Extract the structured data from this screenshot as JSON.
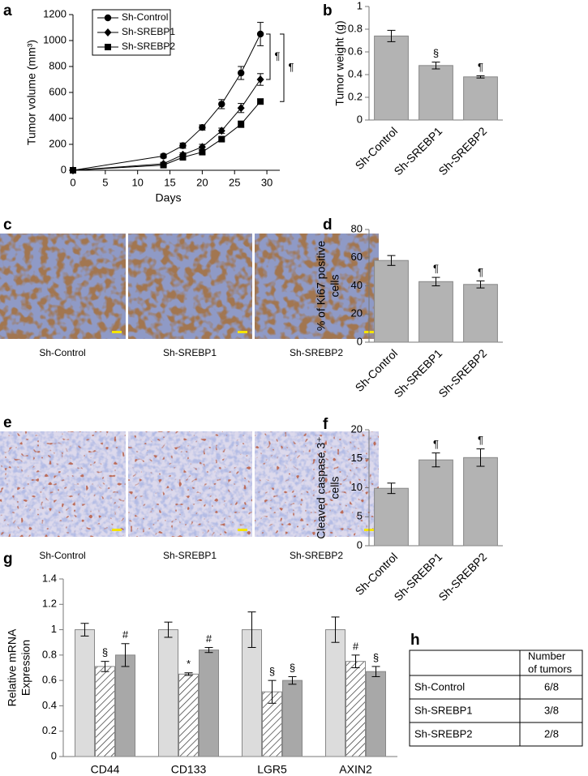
{
  "panel_labels": [
    "a",
    "b",
    "c",
    "d",
    "e",
    "f",
    "g",
    "h"
  ],
  "chart_data": [
    {
      "type": "line",
      "xlabel": "Days",
      "ylabel": [
        "Tumor volume (mm³)"
      ],
      "x": [
        0,
        14,
        17,
        20,
        23,
        26,
        29
      ],
      "xlim": [
        0,
        32
      ],
      "xticks": [
        0,
        5,
        10,
        15,
        20,
        25,
        30
      ],
      "ylim": [
        0,
        1200
      ],
      "yticks": [
        0,
        200,
        400,
        600,
        800,
        1000,
        1200
      ],
      "series": [
        {
          "name": "Sh-Control",
          "color": "#000000",
          "marker": "circle",
          "values": [
            0,
            110,
            190,
            330,
            510,
            750,
            1050
          ],
          "errors": [
            0,
            15,
            20,
            20,
            35,
            50,
            90
          ]
        },
        {
          "name": "Sh-SREBP1",
          "color": "#000000",
          "marker": "diamond",
          "values": [
            0,
            50,
            120,
            180,
            305,
            480,
            700
          ],
          "errors": [
            0,
            10,
            15,
            20,
            20,
            35,
            45
          ]
        },
        {
          "name": "Sh-SREBP2",
          "color": "#000000",
          "marker": "square",
          "values": [
            0,
            40,
            100,
            140,
            240,
            355,
            530
          ],
          "errors": [
            0,
            8,
            10,
            15,
            15,
            25,
            20
          ]
        }
      ],
      "annotations": [
        "¶",
        "¶"
      ]
    },
    {
      "type": "bar",
      "ylabel": [
        "Tumor weight (g)"
      ],
      "categories": [
        "Sh-Control",
        "Sh-SREBP1",
        "Sh-SREBP2"
      ],
      "values": [
        0.74,
        0.48,
        0.38
      ],
      "errors": [
        0.05,
        0.03,
        0.01
      ],
      "color": "#b3b3b3",
      "ylim": [
        0,
        1
      ],
      "yticks": [
        0,
        0.2,
        0.4,
        0.6,
        0.8,
        1
      ],
      "annotations": [
        {
          "index": 1,
          "text": "§"
        },
        {
          "index": 2,
          "text": "¶"
        }
      ]
    },
    {
      "type": "bar",
      "ylabel": [
        "% of Ki67 positive",
        "cells"
      ],
      "categories": [
        "Sh-Control",
        "Sh-SREBP1",
        "Sh-SREBP2"
      ],
      "values": [
        58,
        43,
        41
      ],
      "errors": [
        3.5,
        3,
        2.5
      ],
      "color": "#b3b3b3",
      "ylim": [
        0,
        80
      ],
      "yticks": [
        0,
        20,
        40,
        60,
        80
      ],
      "annotations": [
        {
          "index": 1,
          "text": "¶"
        },
        {
          "index": 2,
          "text": "¶"
        }
      ]
    },
    {
      "type": "bar",
      "ylabel": [
        "Cleaved caspase 3⁺",
        "cells"
      ],
      "categories": [
        "Sh-Control",
        "Sh-SREBP1",
        "Sh-SREBP2"
      ],
      "values": [
        9.9,
        14.8,
        15.2
      ],
      "errors": [
        0.9,
        1.2,
        1.5
      ],
      "color": "#b3b3b3",
      "ylim": [
        0,
        20
      ],
      "yticks": [
        0,
        5,
        10,
        15,
        20
      ],
      "annotations": [
        {
          "index": 1,
          "text": "¶"
        },
        {
          "index": 2,
          "text": "¶"
        }
      ]
    },
    {
      "type": "grouped_bar",
      "ylabel": [
        "Relative mRNA",
        "Expression"
      ],
      "categories": [
        "CD44",
        "CD133",
        "LGR5",
        "AXIN2"
      ],
      "ylim": [
        0,
        1.4
      ],
      "yticks": [
        0,
        0.2,
        0.4,
        0.6,
        0.8,
        1,
        1.2,
        1.4
      ],
      "series": [
        {
          "color": "#dcdcdc",
          "values": [
            1,
            1,
            1,
            1
          ],
          "errors": [
            0.05,
            0.06,
            0.14,
            0.1
          ]
        },
        {
          "color": "#ffffff",
          "hatch": true,
          "values": [
            0.71,
            0.65,
            0.51,
            0.75
          ],
          "errors": [
            0.04,
            0.01,
            0.09,
            0.05
          ],
          "annotations": [
            "§",
            "*",
            "§",
            "#"
          ]
        },
        {
          "color": "#a8a8a8",
          "values": [
            0.8,
            0.84,
            0.6,
            0.67
          ],
          "errors": [
            0.09,
            0.02,
            0.03,
            0.04
          ],
          "annotations": [
            "#",
            "#",
            "§",
            "§"
          ]
        }
      ]
    }
  ],
  "images": [
    {
      "captions": [
        "Sh-Control",
        "Sh-SREBP1",
        "Sh-SREBP2"
      ]
    },
    {
      "captions": [
        "Sh-Control",
        "Sh-SREBP1",
        "Sh-SREBP2"
      ]
    }
  ],
  "table": {
    "header": [
      "Number",
      "of tumors"
    ],
    "rows": [
      [
        "Sh-Control",
        "6/8"
      ],
      [
        "Sh-SREBP1",
        "3/8"
      ],
      [
        "Sh-SREBP2",
        "2/8"
      ]
    ]
  }
}
